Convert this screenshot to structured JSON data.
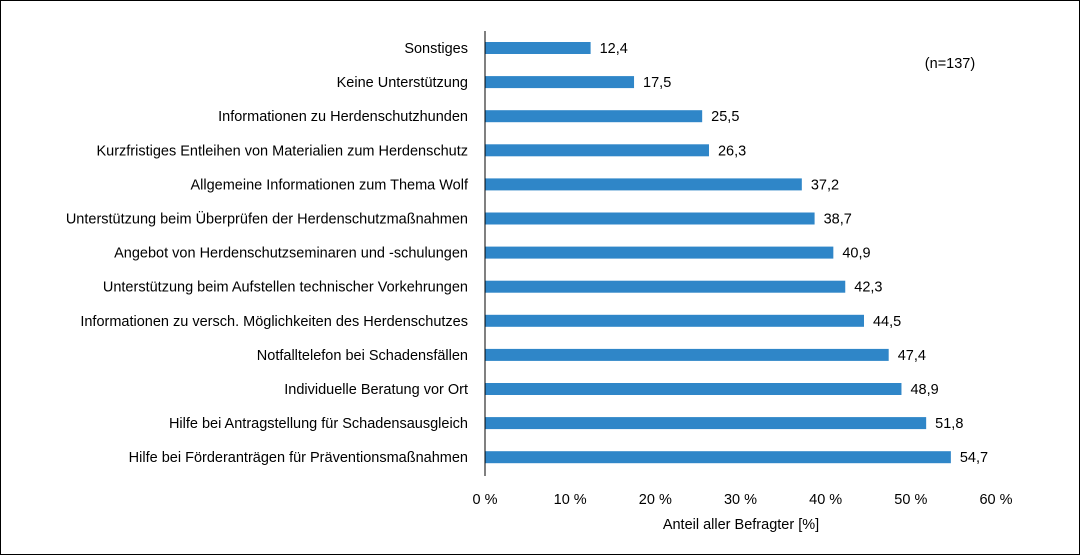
{
  "chart_data": {
    "type": "bar",
    "orientation": "horizontal",
    "categories": [
      "Sonstiges",
      "Keine Unterstützung",
      "Informationen zu Herdenschutzhunden",
      "Kurzfristiges Entleihen von Materialien zum Herdenschutz",
      "Allgemeine Informationen zum Thema Wolf",
      "Unterstützung beim Überprüfen der Herdenschutzmaßnahmen",
      "Angebot von Herdenschutzseminaren und -schulungen",
      "Unterstützung beim Aufstellen technischer Vorkehrungen",
      "Informationen zu versch. Möglichkeiten des Herdenschutzes",
      "Notfalltelefon bei Schadensfällen",
      "Individuelle Beratung vor Ort",
      "Hilfe bei Antragstellung für Schadensausgleich",
      "Hilfe bei Förderanträgen für Präventionsmaßnahmen"
    ],
    "values": [
      12.4,
      17.5,
      25.5,
      26.3,
      37.2,
      38.7,
      40.9,
      42.3,
      44.5,
      47.4,
      48.9,
      51.8,
      54.7
    ],
    "value_labels": [
      "12,4",
      "17,5",
      "25,5",
      "26,3",
      "37,2",
      "38,7",
      "40,9",
      "42,3",
      "44,5",
      "47,4",
      "48,9",
      "51,8",
      "54,7"
    ],
    "xlim": [
      0,
      60
    ],
    "x_ticks": [
      0,
      10,
      20,
      30,
      40,
      50,
      60
    ],
    "x_tick_labels": [
      "0 %",
      "10 %",
      "20 %",
      "30 %",
      "40 %",
      "50 %",
      "60 %"
    ],
    "xlabel": "Anteil aller Befragter [%]",
    "ylabel": "",
    "title": "",
    "annotation": "(n=137)",
    "grid": false,
    "bar_color": "#2f86c8"
  }
}
